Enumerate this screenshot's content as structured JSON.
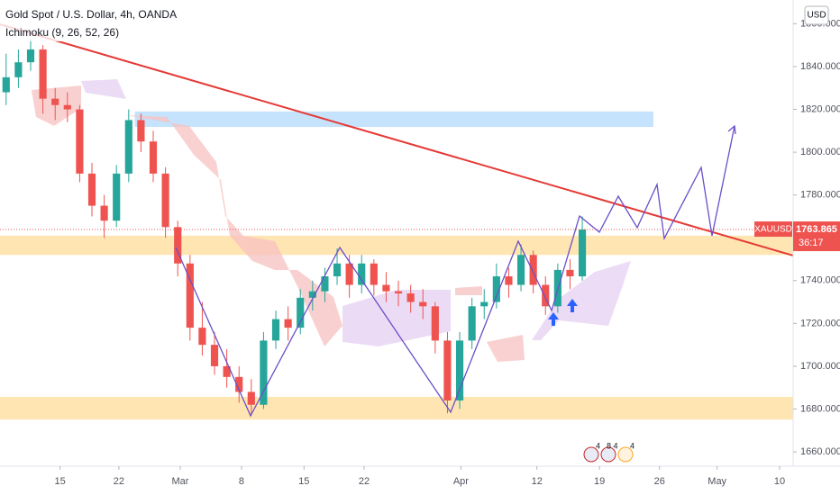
{
  "chart_data": {
    "type": "candlestick",
    "title": "Gold Spot / U.S. Dollar, 4h, OANDA",
    "subtitle": "Ichimoku (9, 26, 52, 26)",
    "currency": "USD",
    "symbol": "XAUUSD",
    "last_price": 1763.865,
    "countdown": "36:17",
    "up_color": "#26a69a",
    "down_color": "#ef5350",
    "x": [
      0.5,
      1.5,
      2.5,
      3.5,
      4.5,
      5.5,
      6.5,
      7.5,
      8.5,
      9.5,
      10.5,
      11.5,
      12.5,
      13.5,
      14.5,
      15.5,
      16.5,
      17.5,
      18.5,
      19.5,
      20.5,
      21.5,
      22.5,
      23.5,
      24.5,
      25.5,
      26.5,
      27.5,
      28.5,
      29.5,
      30.5,
      31.5,
      32.5,
      33.5,
      34.5,
      35.5,
      36.5,
      37.5,
      38.5,
      39.5,
      40.5,
      41.5,
      42.5,
      43.5,
      44.5,
      45.5,
      46.5,
      47.5
    ],
    "open": [
      1828,
      1835,
      1842,
      1848,
      1825,
      1822,
      1820,
      1790,
      1775,
      1768,
      1790,
      1815,
      1805,
      1790,
      1765,
      1748,
      1718,
      1710,
      1700,
      1695,
      1688,
      1682,
      1712,
      1722,
      1718,
      1732,
      1735,
      1742,
      1748,
      1738,
      1748,
      1738,
      1735,
      1734,
      1730,
      1728,
      1712,
      1684,
      1712,
      1728,
      1730,
      1742,
      1738,
      1752,
      1738,
      1728,
      1745,
      1742
    ],
    "high": [
      1846,
      1848,
      1853,
      1850,
      1830,
      1828,
      1822,
      1795,
      1780,
      1794,
      1820,
      1818,
      1810,
      1793,
      1768,
      1752,
      1730,
      1716,
      1708,
      1700,
      1694,
      1716,
      1726,
      1728,
      1736,
      1740,
      1746,
      1755,
      1752,
      1752,
      1750,
      1744,
      1740,
      1738,
      1736,
      1730,
      1716,
      1716,
      1732,
      1736,
      1748,
      1746,
      1757,
      1754,
      1742,
      1748,
      1750,
      1770
    ],
    "low": [
      1822,
      1830,
      1838,
      1818,
      1815,
      1814,
      1786,
      1770,
      1760,
      1765,
      1786,
      1800,
      1786,
      1760,
      1742,
      1712,
      1705,
      1696,
      1690,
      1683,
      1677,
      1680,
      1708,
      1712,
      1715,
      1726,
      1730,
      1738,
      1732,
      1734,
      1733,
      1730,
      1728,
      1725,
      1722,
      1706,
      1678,
      1680,
      1708,
      1722,
      1727,
      1732,
      1735,
      1734,
      1724,
      1725,
      1736,
      1740
    ],
    "close": [
      1835,
      1842,
      1848,
      1825,
      1822,
      1820,
      1790,
      1775,
      1768,
      1790,
      1815,
      1805,
      1790,
      1765,
      1748,
      1718,
      1710,
      1700,
      1695,
      1688,
      1682,
      1712,
      1722,
      1718,
      1732,
      1735,
      1742,
      1748,
      1738,
      1748,
      1738,
      1735,
      1734,
      1730,
      1728,
      1712,
      1684,
      1712,
      1728,
      1730,
      1742,
      1738,
      1752,
      1738,
      1728,
      1745,
      1742,
      1763.865
    ],
    "xlim": [
      0,
      64.7
    ],
    "ylim": [
      1653.3,
      1871.1
    ],
    "xticks": [
      {
        "value": 4.9,
        "label": "15"
      },
      {
        "value": 9.7,
        "label": "22"
      },
      {
        "value": 14.7,
        "label": "Mar"
      },
      {
        "value": 19.7,
        "label": "8"
      },
      {
        "value": 24.8,
        "label": "15"
      },
      {
        "value": 29.7,
        "label": "22"
      },
      {
        "value": 37.6,
        "label": "Apr"
      },
      {
        "value": 43.8,
        "label": "12"
      },
      {
        "value": 48.9,
        "label": "19"
      },
      {
        "value": 53.8,
        "label": "26"
      },
      {
        "value": 58.5,
        "label": "May"
      },
      {
        "value": 63.6,
        "label": "10"
      }
    ],
    "yticks": [
      {
        "value": 1660,
        "label": "1660.000"
      },
      {
        "value": 1680,
        "label": "1680.000"
      },
      {
        "value": 1700,
        "label": "1700.000"
      },
      {
        "value": 1720,
        "label": "1720.000"
      },
      {
        "value": 1740,
        "label": "1740.000"
      },
      {
        "value": 1760,
        "label": "1760.000"
      },
      {
        "value": 1780,
        "label": "1780.000"
      },
      {
        "value": 1800,
        "label": "1800.000"
      },
      {
        "value": 1820,
        "label": "1820.000"
      },
      {
        "value": 1840,
        "label": "1840.000"
      },
      {
        "value": 1860,
        "label": "1860.000"
      }
    ],
    "zones": [
      {
        "color": "#bbdefb",
        "xlim": [
          11.0,
          53.3
        ],
        "ylim": [
          1811.8,
          1819
        ]
      },
      {
        "color": "#ffe0a3",
        "xlim": [
          0,
          64.7
        ],
        "ylim": [
          1752,
          1761
        ]
      },
      {
        "color": "#ffe0a3",
        "xlim": [
          0,
          64.7
        ],
        "ylim": [
          1675.1,
          1685.7
        ]
      }
    ],
    "trendline": {
      "color": "#e53935",
      "x": [
        0,
        64.7
      ],
      "y": [
        1859.7,
        1751.7
      ]
    },
    "events": [
      "4",
      "8 4",
      "4"
    ]
  }
}
